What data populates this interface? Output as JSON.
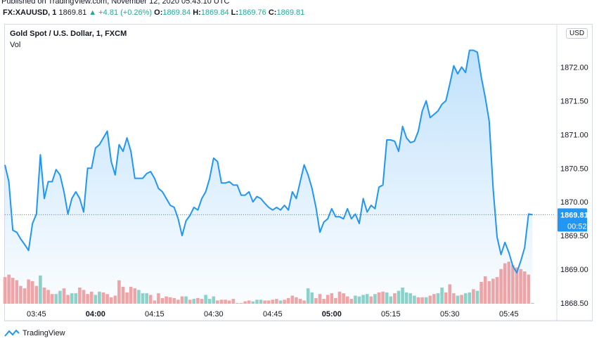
{
  "header": {
    "published": "Published on TradingView.com, November 12, 2020 05:43:10 UTC",
    "symbol": "FX:XAUUSD, 1",
    "last": "1869.81",
    "change": "▲ +4.81 (+0.26%)",
    "o_label": "O:",
    "o_value": "1869.84",
    "h_label": "H:",
    "h_value": "1869.84",
    "l_label": "L:",
    "l_value": "1869.76",
    "c_label": "C:",
    "c_value": "1869.81"
  },
  "chart_title": "Gold Spot / U.S. Dollar, 1, FXCM",
  "volume_label": "Vol",
  "currency_button": "USD",
  "footer": {
    "brand": "TradingView"
  },
  "colors": {
    "line": "#2196f3",
    "vol_up": "#8fd3c8",
    "vol_down": "#f4a5a5",
    "price_tag": "#2196f3"
  },
  "chart_data": {
    "type": "area",
    "title": "Gold Spot / U.S. Dollar, 1, FXCM",
    "xlabel": "",
    "ylabel": "",
    "xlim": [
      "03:37",
      "05:51"
    ],
    "ylim": [
      1868.5,
      1872.5
    ],
    "x_ticks": [
      "03:45",
      "04:00",
      "04:15",
      "04:30",
      "04:45",
      "05:00",
      "05:15",
      "05:30",
      "05:45"
    ],
    "y_ticks": [
      "1868.50",
      "1869.00",
      "1869.50",
      "1870.00",
      "1870.50",
      "1871.00",
      "1871.50",
      "1872.00"
    ],
    "last_price": "1869.81",
    "countdown": "00:52",
    "grid": false,
    "series": [
      {
        "name": "Price",
        "type": "line",
        "values": [
          1870.55,
          1870.3,
          1869.58,
          1869.55,
          1869.45,
          1869.37,
          1869.28,
          1869.68,
          1869.82,
          1870.7,
          1870.05,
          1870.3,
          1870.3,
          1870.48,
          1870.4,
          1870.15,
          1869.82,
          1870.05,
          1870.15,
          1870.05,
          1869.85,
          1870.5,
          1870.5,
          1870.8,
          1870.85,
          1870.95,
          1871.05,
          1870.6,
          1870.4,
          1870.85,
          1870.75,
          1870.95,
          1870.75,
          1870.35,
          1870.35,
          1870.35,
          1870.42,
          1870.45,
          1870.35,
          1870.2,
          1870.15,
          1870.05,
          1869.95,
          1869.92,
          1869.75,
          1869.5,
          1869.72,
          1869.8,
          1869.92,
          1869.88,
          1870.05,
          1870.15,
          1870.35,
          1870.65,
          1870.6,
          1870.28,
          1870.28,
          1870.3,
          1870.25,
          1870.25,
          1870.1,
          1870.1,
          1870.15,
          1870.0,
          1870.08,
          1870.05,
          1869.98,
          1869.92,
          1869.88,
          1869.92,
          1869.88,
          1869.95,
          1869.88,
          1870.15,
          1870.05,
          1870.3,
          1870.55,
          1870.4,
          1870.2,
          1869.92,
          1869.55,
          1869.7,
          1869.75,
          1869.9,
          1869.78,
          1869.78,
          1869.75,
          1869.9,
          1869.75,
          1869.82,
          1869.68,
          1870.05,
          1869.85,
          1869.95,
          1869.9,
          1870.22,
          1870.25,
          1870.92,
          1870.92,
          1870.9,
          1870.75,
          1871.12,
          1870.95,
          1870.88,
          1870.9,
          1871.05,
          1871.35,
          1871.5,
          1871.25,
          1871.3,
          1871.35,
          1871.45,
          1871.5,
          1871.75,
          1872.02,
          1871.9,
          1872.0,
          1871.92,
          1872.25,
          1872.25,
          1872.22,
          1871.85,
          1871.55,
          1871.2,
          1870.2,
          1869.48,
          1869.22,
          1869.4,
          1869.25,
          1869.05,
          1868.95,
          1869.12,
          1869.32,
          1869.82,
          1869.81
        ]
      },
      {
        "name": "Vol",
        "type": "volume",
        "values": [
          -33,
          -36,
          -32,
          -29,
          -22,
          -19,
          -30,
          -28,
          -22,
          35,
          -20,
          -17,
          -12,
          12,
          16,
          -19,
          -11,
          13,
          13,
          -20,
          -17,
          -12,
          -15,
          11,
          15,
          -14,
          -12,
          -8,
          -10,
          -29,
          -21,
          -14,
          -21,
          -19,
          17,
          13,
          13,
          -11,
          -4,
          -13,
          -7,
          -9,
          -8,
          -7,
          -5,
          -9,
          9,
          -5,
          6,
          -7,
          -6,
          11,
          6,
          9,
          -4,
          -5,
          -5,
          -4,
          -6,
          -1,
          -1,
          -3,
          -4,
          3,
          5,
          5,
          -4,
          -4,
          -5,
          -6,
          4,
          -5,
          -7,
          -10,
          -8,
          -6,
          -4,
          19,
          14,
          -7,
          -12,
          -6,
          -11,
          -13,
          -7,
          -15,
          -13,
          -9,
          -6,
          10,
          9,
          11,
          12,
          -9,
          12,
          -14,
          -15,
          14,
          9,
          -13,
          16,
          20,
          14,
          13,
          10,
          -8,
          -8,
          8,
          -10,
          -12,
          13,
          20,
          -14,
          -24,
          -13,
          10,
          -11,
          13,
          14,
          -18,
          16,
          -27,
          -34,
          -28,
          -31,
          -33,
          -43,
          -50,
          -52,
          -48,
          -45,
          -43,
          -40,
          -36,
          -1
        ]
      }
    ]
  }
}
